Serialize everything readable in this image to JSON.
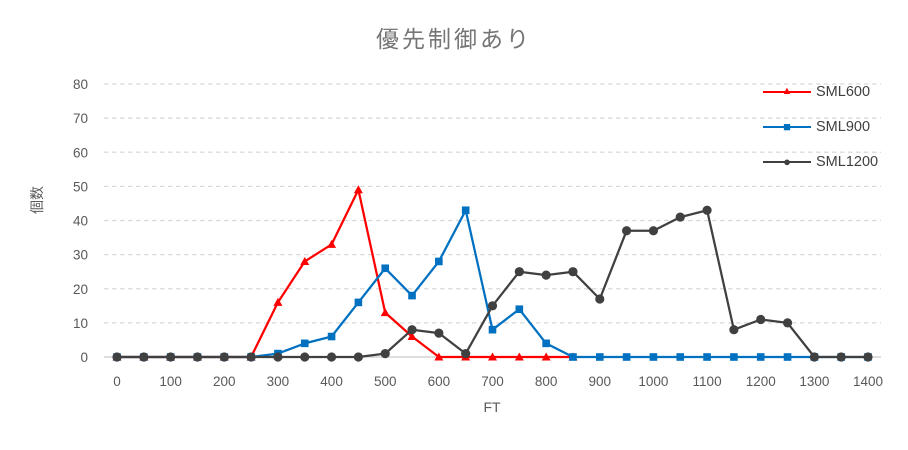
{
  "chart_data": {
    "type": "line",
    "title": "優先制御あり",
    "xlabel": "FT",
    "ylabel": "個数",
    "x": [
      0,
      50,
      100,
      150,
      200,
      250,
      300,
      350,
      400,
      450,
      500,
      550,
      600,
      650,
      700,
      750,
      800,
      850,
      900,
      950,
      1000,
      1050,
      1100,
      1150,
      1200,
      1250,
      1300,
      1350,
      1400
    ],
    "x_tick_interval": 100,
    "ylim": [
      0,
      80
    ],
    "ytick_interval": 10,
    "grid": "horizontal-dashed",
    "legend_position": "top-right",
    "series": [
      {
        "name": "SML600",
        "color": "#FF0000",
        "marker": "triangle",
        "values": [
          0,
          0,
          0,
          0,
          0,
          0,
          16,
          28,
          33,
          49,
          13,
          6,
          0,
          0,
          0,
          0,
          0,
          0,
          null,
          null,
          null,
          null,
          null,
          null,
          null,
          null,
          null,
          null,
          null
        ]
      },
      {
        "name": "SML900",
        "color": "#0070C0",
        "marker": "square",
        "values": [
          0,
          0,
          0,
          0,
          0,
          0,
          1,
          4,
          6,
          16,
          26,
          18,
          28,
          43,
          8,
          14,
          4,
          0,
          0,
          0,
          0,
          0,
          0,
          0,
          0,
          0,
          0,
          0,
          0
        ]
      },
      {
        "name": "SML1200",
        "color": "#404040",
        "marker": "circle",
        "values": [
          0,
          0,
          0,
          0,
          0,
          0,
          0,
          0,
          0,
          0,
          1,
          8,
          7,
          1,
          15,
          25,
          24,
          25,
          17,
          37,
          37,
          41,
          43,
          8,
          11,
          10,
          0,
          0,
          0
        ]
      }
    ]
  },
  "colors": {
    "grid_line": "#D9D9D9",
    "axis_line": "#C9C9C9",
    "tick_text": "#595959",
    "title_text": "#757575",
    "legend_text": "#3F3F3F"
  }
}
